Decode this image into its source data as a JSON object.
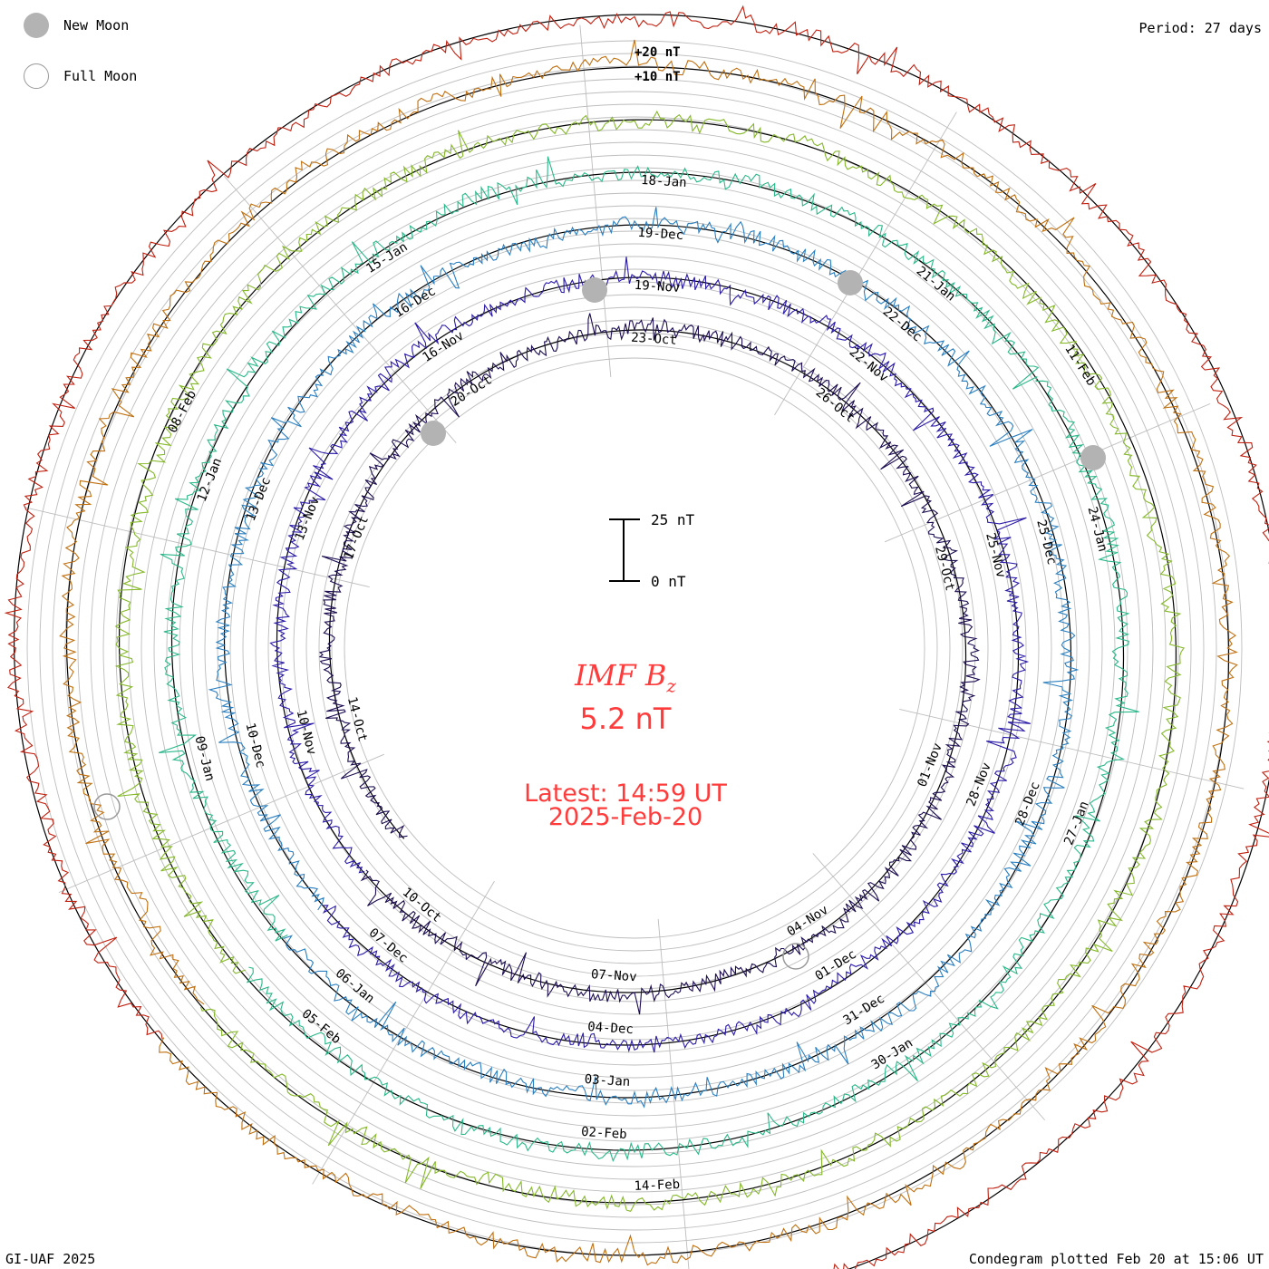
{
  "legend": {
    "new_moon_label": "New Moon",
    "full_moon_label": "Full Moon"
  },
  "period_label": "Period: 27 days",
  "footer": {
    "left": "GI-UAF 2025",
    "right": "Condegram plotted Feb 20 at 15:06 UT"
  },
  "center": {
    "title_main": "IMF B",
    "title_sub": "z",
    "value": "5.2 nT",
    "latest_label": "Latest: 14:59 UT",
    "latest_date": "2025-Feb-20"
  },
  "colors": {
    "accent": "#ff3b3b",
    "ring": "#b0b0b0",
    "baseline": "#000000",
    "moon_fill": "#b3b3b3"
  },
  "chart_data": {
    "type": "condegram",
    "title": "IMF Bz",
    "period_days": 27,
    "units": "nT",
    "scale_bar": {
      "top_label": "25 nT",
      "bottom_label": "0 nT",
      "span_nT": 25
    },
    "ring_labels": [
      "+20 nT",
      "+10 nT"
    ],
    "latest_value_nT": 5.2,
    "latest_time": "14:59 UT",
    "latest_date": "2025-Feb-20",
    "rotations": [
      {
        "color": "#1c0c50",
        "labels": [
          "17-Oct",
          "20-Oct",
          "23-Oct",
          "26-Oct",
          "29-Oct",
          "01-Nov",
          "04-Nov",
          "07-Nov",
          "10-Oct",
          "14-Oct"
        ],
        "angles": [
          60,
          120,
          180,
          225,
          270,
          322,
          15,
          50,
          90,
          40
        ]
      },
      {
        "color": "#2a1aa8",
        "labels": [
          "07-Nov",
          "10-Nov",
          "13-Nov",
          "16-Nov",
          "19-Nov",
          "22-Nov",
          "25-Nov",
          "28-Nov",
          "01-Dec",
          "04-Dec"
        ],
        "angles": [
          30,
          70,
          110,
          150,
          190,
          230,
          270,
          310,
          350,
          40
        ]
      },
      {
        "color": "#2a7fc0",
        "labels": [
          "04-Dec",
          "07-Dec",
          "10-Dec",
          "13-Dec",
          "16-Dec",
          "19-Dec",
          "22-Dec",
          "25-Dec",
          "28-Dec",
          "31-Dec"
        ],
        "angles": [
          40,
          80,
          120,
          160,
          200,
          240,
          280,
          320,
          355,
          30
        ]
      },
      {
        "color": "#2ab88a",
        "labels": [
          "31-Dec",
          "03-Jan",
          "06-Jan",
          "09-Jan",
          "12-Jan",
          "15-Jan",
          "18-Jan",
          "21-Jan",
          "24-Jan"
        ],
        "angles": [
          32,
          78,
          125,
          168,
          200,
          232,
          278,
          320,
          352
        ]
      },
      {
        "color": "#86b82a",
        "labels": [
          "27-Jan",
          "30-Jan",
          "02-Feb",
          "05-Feb",
          "08-Feb",
          "11-Feb",
          "14-Feb"
        ],
        "angles": [
          36,
          80,
          120,
          160,
          200,
          240,
          280
        ]
      },
      {
        "color": "#c07010",
        "labels": [
          "08-Feb",
          "11-Feb",
          "14-Feb"
        ],
        "angles": [
          200,
          240,
          280
        ]
      },
      {
        "color": "#c02010",
        "labels": [],
        "angles": []
      }
    ]
  },
  "labels_rendered": {
    "r1": [
      "14-Oct",
      "17-Oct",
      "20-Oct",
      "23-Oct",
      "26-Oct",
      "29-Oct",
      "01-Nov",
      "04-Nov",
      "07-Nov",
      "10-Oct"
    ],
    "r2": [
      "10-Nov",
      "13-Nov",
      "16-Nov",
      "19-Nov",
      "22-Nov",
      "25-Nov",
      "28-Nov",
      "01-Dec",
      "04-Dec",
      "07-Dec"
    ],
    "r3": [
      "10-Dec",
      "13-Dec",
      "16-Dec",
      "19-Dec",
      "22-Dec",
      "25-Dec",
      "28-Dec",
      "31-Dec",
      "03-Jan",
      "06-Jan"
    ],
    "r4": [
      "09-Jan",
      "12-Jan",
      "15-Jan",
      "18-Jan",
      "21-Jan",
      "24-Jan",
      "27-Jan",
      "30-Jan",
      "02-Feb",
      "05-Feb"
    ],
    "r5": [
      "08-Feb",
      "11-Feb",
      "14-Feb"
    ]
  }
}
